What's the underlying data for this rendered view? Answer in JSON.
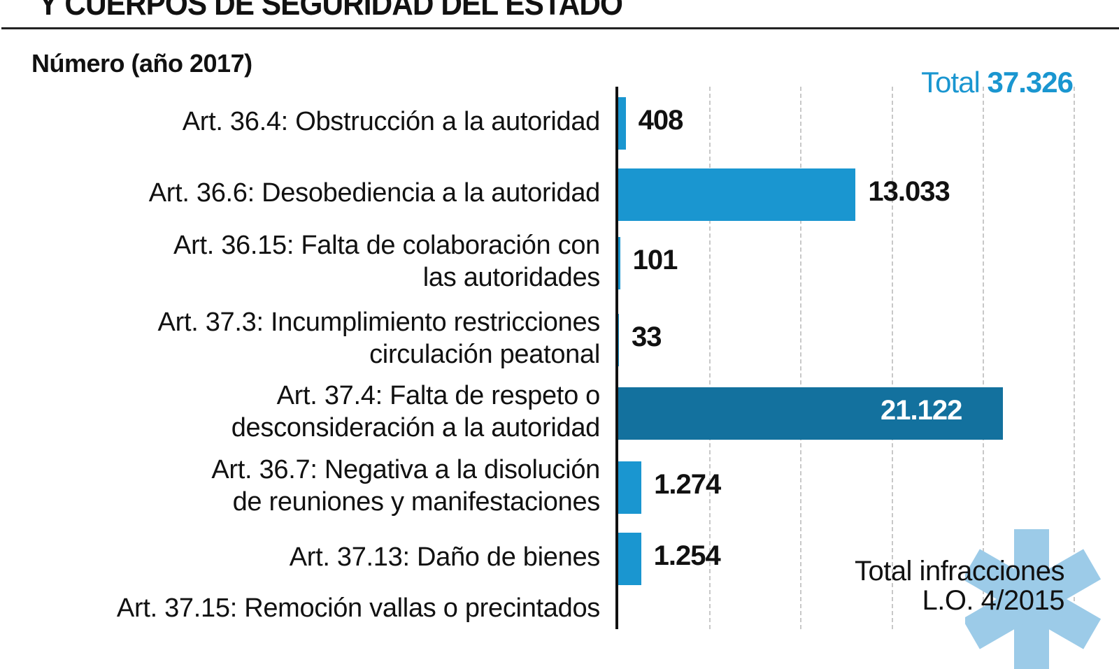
{
  "header": {
    "title": "Y CUERPOS DE SEGURIDAD DEL ESTADO",
    "subtitle": "Número (año 2017)",
    "total_label": "Total",
    "total_value": "37.326"
  },
  "footer": {
    "line1": "Total infracciones",
    "line2": "L.O. 4/2015"
  },
  "colors": {
    "bar": "#1a96d0",
    "bar_highlight": "#13719e",
    "total": "#1a96d0",
    "asterisk": "#9ccbe8"
  },
  "chart_data": {
    "type": "bar",
    "orientation": "horizontal",
    "title": "Y CUERPOS DE SEGURIDAD DEL ESTADO",
    "subtitle": "Número (año 2017)",
    "xlim": [
      0,
      25000
    ],
    "grid": true,
    "categories": [
      [
        "Art. 36.4: Obstrucción a la autoridad"
      ],
      [
        "Art. 36.6: Desobediencia a la autoridad"
      ],
      [
        "Art. 36.15: Falta de colaboración con",
        "las autoridades"
      ],
      [
        "Art. 37.3: Incumplimiento restricciones",
        "circulación peatonal"
      ],
      [
        "Art. 37.4: Falta de respeto o",
        "desconsideración a la autoridad"
      ],
      [
        "Art. 36.7: Negativa a la disolución",
        "de reuniones y manifestaciones"
      ],
      [
        "Art. 37.13: Daño de bienes"
      ],
      [
        "Art. 37.15: Remoción vallas o precintados"
      ]
    ],
    "values": [
      408,
      13033,
      101,
      33,
      21122,
      1274,
      1254,
      null
    ],
    "value_labels": [
      "408",
      "13.033",
      "101",
      "33",
      "21.122",
      "1.274",
      "1.254",
      ""
    ],
    "highlight_index": 4
  }
}
